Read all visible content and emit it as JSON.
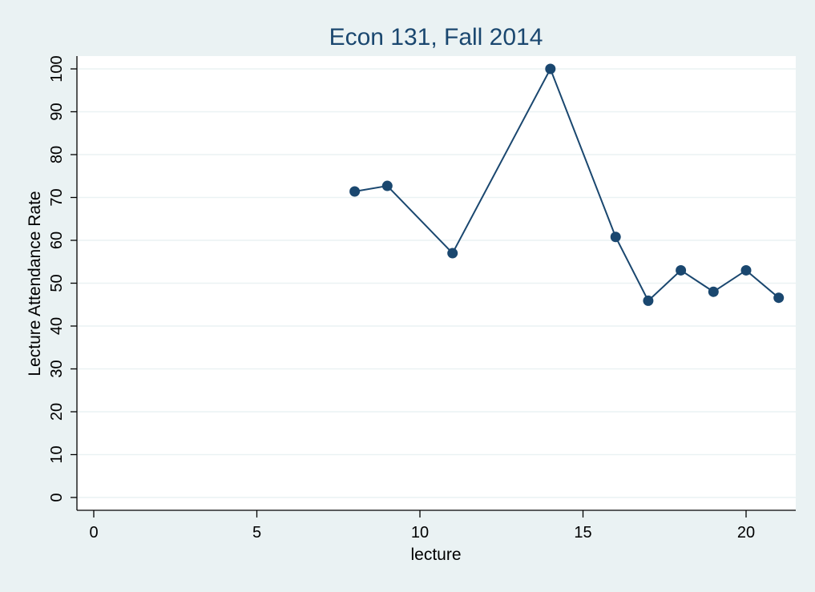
{
  "chart_data": {
    "type": "line",
    "title": "Econ 131, Fall 2014",
    "xlabel": "lecture",
    "ylabel": "Lecture Attendance Rate",
    "xlim": [
      0,
      21
    ],
    "ylim": [
      0,
      100
    ],
    "xticks": [
      0,
      5,
      10,
      15,
      20
    ],
    "yticks": [
      0,
      10,
      20,
      30,
      40,
      50,
      60,
      70,
      80,
      90,
      100
    ],
    "grid": "horizontal",
    "legend": "none",
    "series": [
      {
        "color": "#1a476f",
        "x": [
          8,
          9,
          11,
          14,
          16,
          17,
          18,
          19,
          20,
          21
        ],
        "y": [
          71.4,
          72.7,
          57.0,
          100.0,
          60.8,
          45.9,
          53.0,
          48.0,
          53.0,
          46.6
        ]
      }
    ]
  }
}
